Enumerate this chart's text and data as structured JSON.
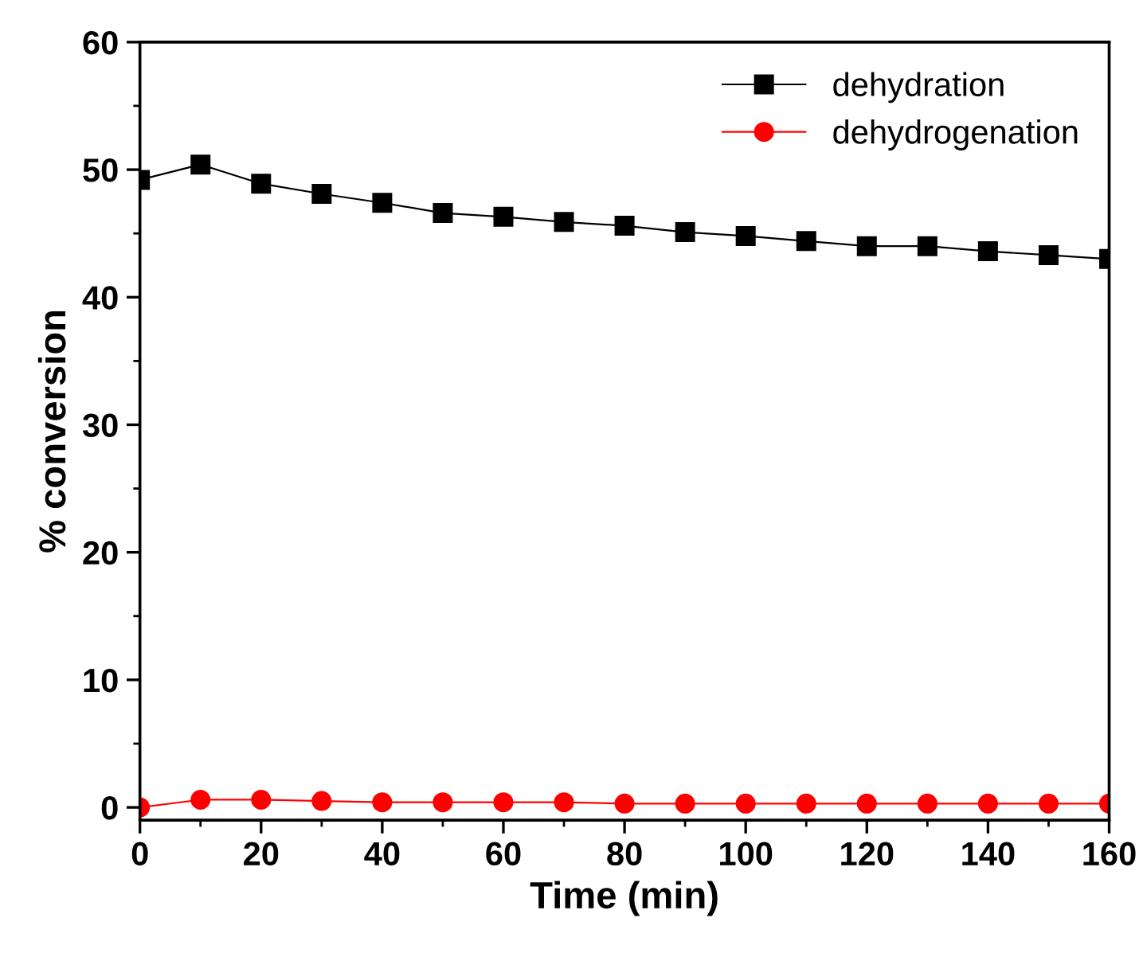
{
  "chart_data": {
    "type": "line",
    "xlabel": "Time (min)",
    "ylabel": "% conversion",
    "x": [
      0,
      10,
      20,
      30,
      40,
      50,
      60,
      70,
      80,
      90,
      100,
      110,
      120,
      130,
      140,
      150,
      160
    ],
    "series": [
      {
        "name": "dehydration",
        "color": "#000000",
        "marker": "square",
        "values": [
          49.2,
          50.4,
          48.9,
          48.1,
          47.4,
          46.6,
          46.3,
          45.9,
          45.6,
          45.1,
          44.8,
          44.4,
          44.0,
          44.0,
          43.6,
          43.3,
          43.0
        ]
      },
      {
        "name": "dehydrogenation",
        "color": "#ff0000",
        "marker": "circle",
        "values": [
          0.0,
          0.6,
          0.6,
          0.5,
          0.4,
          0.4,
          0.4,
          0.4,
          0.3,
          0.3,
          0.3,
          0.3,
          0.3,
          0.3,
          0.3,
          0.3,
          0.3
        ]
      }
    ],
    "xlim": [
      0,
      160
    ],
    "xticks": [
      0,
      20,
      40,
      60,
      80,
      100,
      120,
      140,
      160
    ],
    "ylim": [
      -1,
      60
    ],
    "yticks": [
      0,
      10,
      20,
      30,
      40,
      50,
      60
    ],
    "grid": false,
    "legend": "top right",
    "line_style": "solid"
  }
}
